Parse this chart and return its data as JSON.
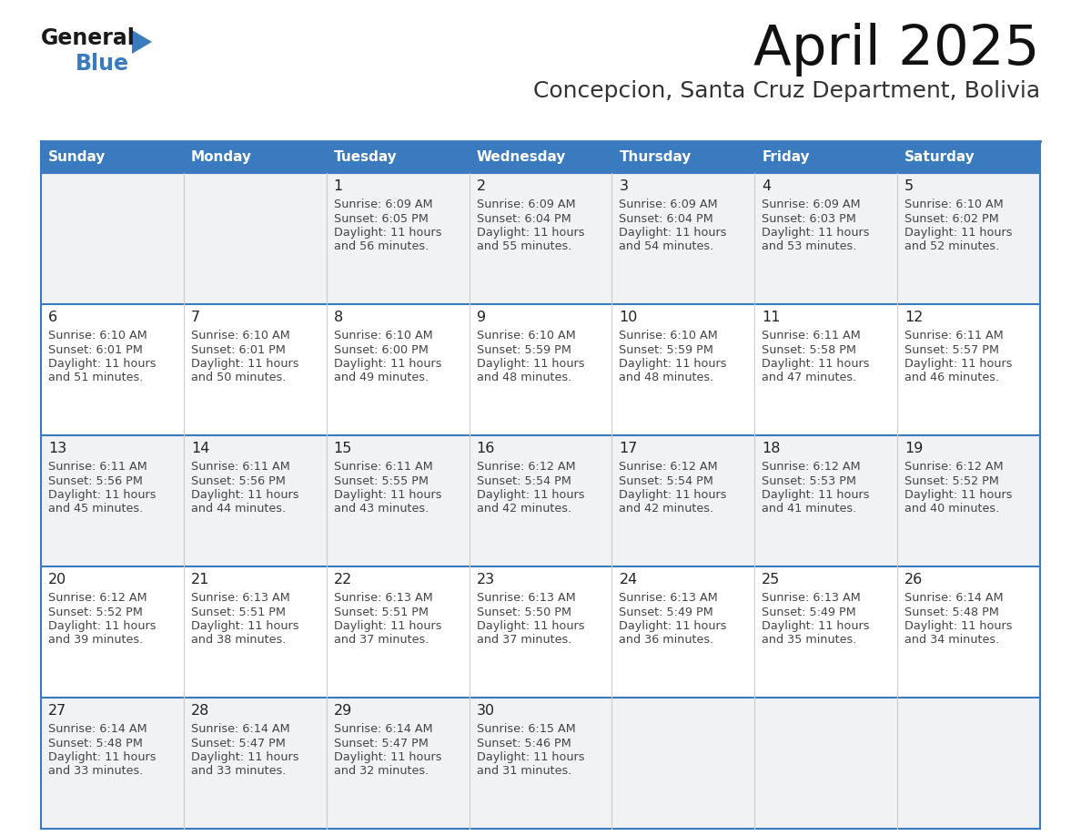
{
  "title": "April 2025",
  "subtitle": "Concepcion, Santa Cruz Department, Bolivia",
  "days_of_week": [
    "Sunday",
    "Monday",
    "Tuesday",
    "Wednesday",
    "Thursday",
    "Friday",
    "Saturday"
  ],
  "header_bg": "#3a7abf",
  "header_text": "#ffffff",
  "cell_bg_light": "#f0f2f5",
  "cell_bg_white": "#ffffff",
  "border_color": "#3a7abf",
  "row_line_color": "#3a7abf",
  "text_color": "#444444",
  "day_num_color": "#222222",
  "calendar": [
    [
      null,
      null,
      {
        "day": 1,
        "sunrise": "6:09 AM",
        "sunset": "6:05 PM",
        "daylight": "11 hours and 56 minutes."
      },
      {
        "day": 2,
        "sunrise": "6:09 AM",
        "sunset": "6:04 PM",
        "daylight": "11 hours and 55 minutes."
      },
      {
        "day": 3,
        "sunrise": "6:09 AM",
        "sunset": "6:04 PM",
        "daylight": "11 hours and 54 minutes."
      },
      {
        "day": 4,
        "sunrise": "6:09 AM",
        "sunset": "6:03 PM",
        "daylight": "11 hours and 53 minutes."
      },
      {
        "day": 5,
        "sunrise": "6:10 AM",
        "sunset": "6:02 PM",
        "daylight": "11 hours and 52 minutes."
      }
    ],
    [
      {
        "day": 6,
        "sunrise": "6:10 AM",
        "sunset": "6:01 PM",
        "daylight": "11 hours and 51 minutes."
      },
      {
        "day": 7,
        "sunrise": "6:10 AM",
        "sunset": "6:01 PM",
        "daylight": "11 hours and 50 minutes."
      },
      {
        "day": 8,
        "sunrise": "6:10 AM",
        "sunset": "6:00 PM",
        "daylight": "11 hours and 49 minutes."
      },
      {
        "day": 9,
        "sunrise": "6:10 AM",
        "sunset": "5:59 PM",
        "daylight": "11 hours and 48 minutes."
      },
      {
        "day": 10,
        "sunrise": "6:10 AM",
        "sunset": "5:59 PM",
        "daylight": "11 hours and 48 minutes."
      },
      {
        "day": 11,
        "sunrise": "6:11 AM",
        "sunset": "5:58 PM",
        "daylight": "11 hours and 47 minutes."
      },
      {
        "day": 12,
        "sunrise": "6:11 AM",
        "sunset": "5:57 PM",
        "daylight": "11 hours and 46 minutes."
      }
    ],
    [
      {
        "day": 13,
        "sunrise": "6:11 AM",
        "sunset": "5:56 PM",
        "daylight": "11 hours and 45 minutes."
      },
      {
        "day": 14,
        "sunrise": "6:11 AM",
        "sunset": "5:56 PM",
        "daylight": "11 hours and 44 minutes."
      },
      {
        "day": 15,
        "sunrise": "6:11 AM",
        "sunset": "5:55 PM",
        "daylight": "11 hours and 43 minutes."
      },
      {
        "day": 16,
        "sunrise": "6:12 AM",
        "sunset": "5:54 PM",
        "daylight": "11 hours and 42 minutes."
      },
      {
        "day": 17,
        "sunrise": "6:12 AM",
        "sunset": "5:54 PM",
        "daylight": "11 hours and 42 minutes."
      },
      {
        "day": 18,
        "sunrise": "6:12 AM",
        "sunset": "5:53 PM",
        "daylight": "11 hours and 41 minutes."
      },
      {
        "day": 19,
        "sunrise": "6:12 AM",
        "sunset": "5:52 PM",
        "daylight": "11 hours and 40 minutes."
      }
    ],
    [
      {
        "day": 20,
        "sunrise": "6:12 AM",
        "sunset": "5:52 PM",
        "daylight": "11 hours and 39 minutes."
      },
      {
        "day": 21,
        "sunrise": "6:13 AM",
        "sunset": "5:51 PM",
        "daylight": "11 hours and 38 minutes."
      },
      {
        "day": 22,
        "sunrise": "6:13 AM",
        "sunset": "5:51 PM",
        "daylight": "11 hours and 37 minutes."
      },
      {
        "day": 23,
        "sunrise": "6:13 AM",
        "sunset": "5:50 PM",
        "daylight": "11 hours and 37 minutes."
      },
      {
        "day": 24,
        "sunrise": "6:13 AM",
        "sunset": "5:49 PM",
        "daylight": "11 hours and 36 minutes."
      },
      {
        "day": 25,
        "sunrise": "6:13 AM",
        "sunset": "5:49 PM",
        "daylight": "11 hours and 35 minutes."
      },
      {
        "day": 26,
        "sunrise": "6:14 AM",
        "sunset": "5:48 PM",
        "daylight": "11 hours and 34 minutes."
      }
    ],
    [
      {
        "day": 27,
        "sunrise": "6:14 AM",
        "sunset": "5:48 PM",
        "daylight": "11 hours and 33 minutes."
      },
      {
        "day": 28,
        "sunrise": "6:14 AM",
        "sunset": "5:47 PM",
        "daylight": "11 hours and 33 minutes."
      },
      {
        "day": 29,
        "sunrise": "6:14 AM",
        "sunset": "5:47 PM",
        "daylight": "11 hours and 32 minutes."
      },
      {
        "day": 30,
        "sunrise": "6:15 AM",
        "sunset": "5:46 PM",
        "daylight": "11 hours and 31 minutes."
      },
      null,
      null,
      null
    ]
  ],
  "logo_text_general": "General",
  "logo_text_blue": "Blue",
  "logo_color_general": "#1a1a1a",
  "logo_color_blue": "#3a7abf",
  "logo_triangle_color": "#3a7abf"
}
